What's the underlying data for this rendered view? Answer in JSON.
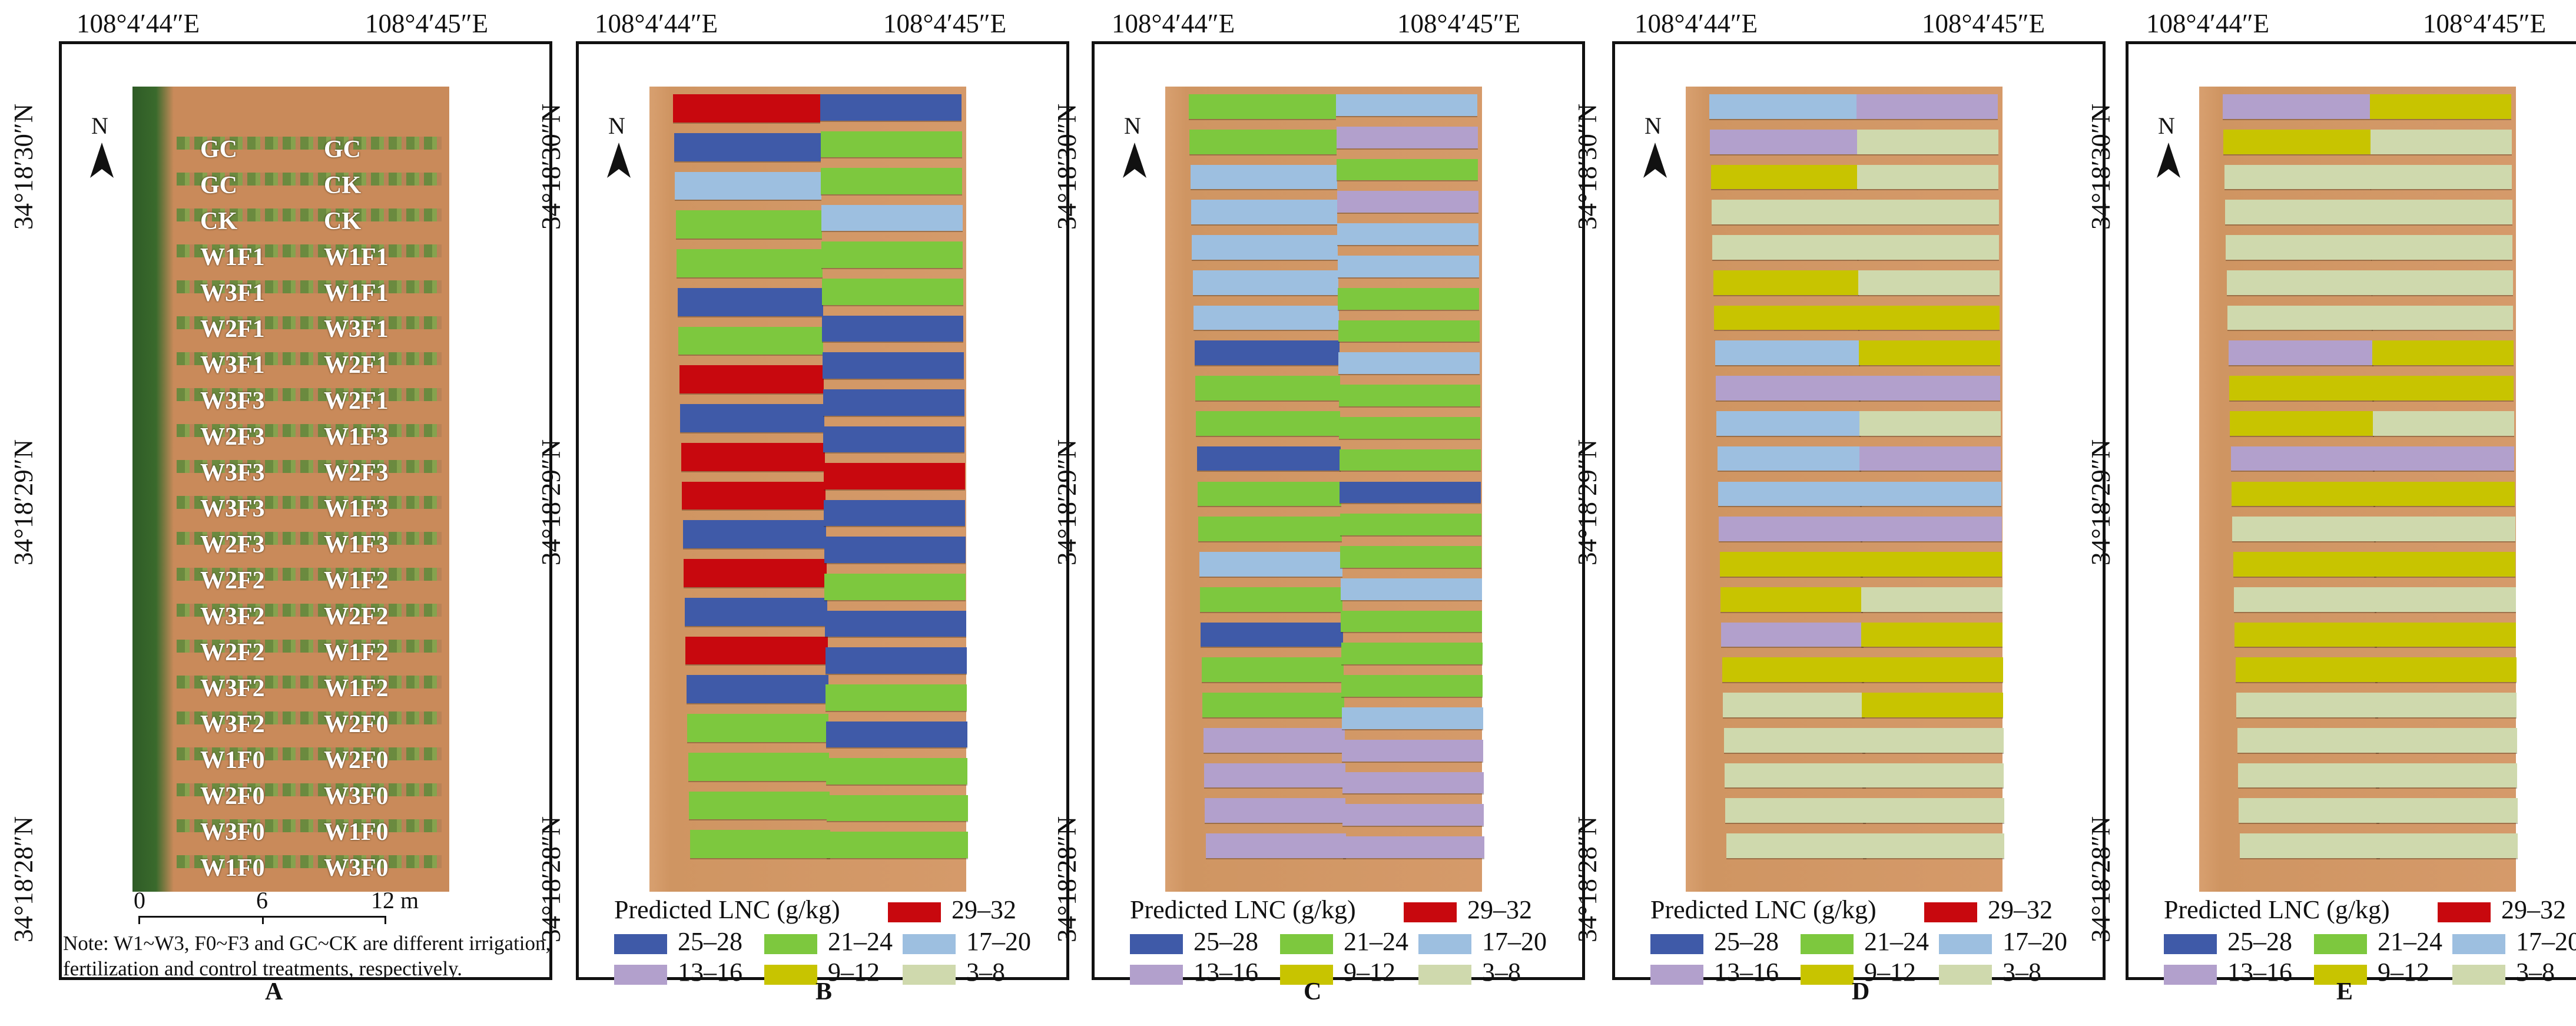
{
  "coords": {
    "lon_left": "108°4′44″E",
    "lon_right": "108°4′45″E",
    "lat_top": "34°18′30″N",
    "lat_mid": "34°18′29″N",
    "lat_bot": "34°18′28″N"
  },
  "north_label": "N",
  "panel_a": {
    "letter": "A",
    "treatments": [
      [
        "GC",
        "GC"
      ],
      [
        "GC",
        "CK"
      ],
      [
        "CK",
        "CK"
      ],
      [
        "W1F1",
        "W1F1"
      ],
      [
        "W3F1",
        "W1F1"
      ],
      [
        "W2F1",
        "W3F1"
      ],
      [
        "W3F1",
        "W2F1"
      ],
      [
        "W3F3",
        "W2F1"
      ],
      [
        "W2F3",
        "W1F3"
      ],
      [
        "W3F3",
        "W2F3"
      ],
      [
        "W3F3",
        "W1F3"
      ],
      [
        "W2F3",
        "W1F3"
      ],
      [
        "W2F2",
        "W1F2"
      ],
      [
        "W3F2",
        "W2F2"
      ],
      [
        "W2F2",
        "W1F2"
      ],
      [
        "W3F2",
        "W1F2"
      ],
      [
        "W3F2",
        "W2F0"
      ],
      [
        "W1F0",
        "W2F0"
      ],
      [
        "W2F0",
        "W3F0"
      ],
      [
        "W3F0",
        "W1F0"
      ],
      [
        "W1F0",
        "W3F0"
      ]
    ],
    "scale_ticks": [
      "0",
      "6",
      "12 m"
    ],
    "note": "Note: W1~W3, F0~F3 and GC~CK are different irrigation, fertilization and control treatments, respectively."
  },
  "legend": {
    "title": "Predicted LNC (g/kg)",
    "classes": [
      {
        "key": "c29",
        "label": "29–32",
        "color": "#c8080e"
      },
      {
        "key": "c25",
        "label": "25–28",
        "color": "#3f5aa8"
      },
      {
        "key": "c21",
        "label": "21–24",
        "color": "#7dc83e"
      },
      {
        "key": "c17",
        "label": "17–20",
        "color": "#9dbfe0"
      },
      {
        "key": "c13",
        "label": "13–16",
        "color": "#b2a0cc"
      },
      {
        "key": "c9",
        "label": "9–12",
        "color": "#c8c400"
      },
      {
        "key": "c3",
        "label": "3–8",
        "color": "#cfd9ad"
      }
    ]
  },
  "maps": [
    {
      "letter": "B",
      "left": [
        "c29",
        "c25",
        "c17",
        "c21",
        "c21",
        "c25",
        "c21",
        "c29",
        "c25",
        "c29",
        "c29",
        "c25",
        "c29",
        "c25",
        "c29",
        "c25",
        "c21",
        "c21",
        "c21",
        "c21"
      ],
      "right": [
        "c25",
        "c21",
        "c21",
        "c17",
        "c21",
        "c21",
        "c25",
        "c25",
        "c25",
        "c25",
        "c29",
        "c25",
        "c25",
        "c21",
        "c25",
        "c25",
        "c21",
        "c25",
        "c21",
        "c21",
        "c21"
      ]
    },
    {
      "letter": "C",
      "left": [
        "c21",
        "c21",
        "c17",
        "c17",
        "c17",
        "c17",
        "c17",
        "c25",
        "c21",
        "c21",
        "c25",
        "c21",
        "c21",
        "c17",
        "c21",
        "c25",
        "c21",
        "c21",
        "c13",
        "c13",
        "c13",
        "c13"
      ],
      "right": [
        "c17",
        "c13",
        "c21",
        "c13",
        "c17",
        "c17",
        "c21",
        "c21",
        "c17",
        "c21",
        "c21",
        "c21",
        "c25",
        "c21",
        "c21",
        "c17",
        "c21",
        "c21",
        "c21",
        "c17",
        "c13",
        "c13",
        "c13",
        "c13"
      ]
    },
    {
      "letter": "D",
      "left": [
        "c17",
        "c13",
        "c9",
        "c3",
        "c3",
        "c9",
        "c9",
        "c17",
        "c13",
        "c17",
        "c17",
        "c17",
        "c13",
        "c9",
        "c9",
        "c13",
        "c9",
        "c3",
        "c3",
        "c3",
        "c3",
        "c3"
      ],
      "right": [
        "c13",
        "c3",
        "c3",
        "c3",
        "c3",
        "c3",
        "c9",
        "c9",
        "c13",
        "c3",
        "c13",
        "c17",
        "c13",
        "c9",
        "c3",
        "c9",
        "c9",
        "c9",
        "c3",
        "c3",
        "c3",
        "c3"
      ]
    },
    {
      "letter": "E",
      "left": [
        "c13",
        "c9",
        "c3",
        "c3",
        "c3",
        "c3",
        "c3",
        "c13",
        "c9",
        "c9",
        "c13",
        "c9",
        "c3",
        "c9",
        "c3",
        "c9",
        "c9",
        "c3",
        "c3",
        "c3",
        "c3",
        "c3"
      ],
      "right": [
        "c9",
        "c3",
        "c3",
        "c3",
        "c3",
        "c3",
        "c3",
        "c9",
        "c9",
        "c3",
        "c13",
        "c9",
        "c3",
        "c9",
        "c3",
        "c9",
        "c9",
        "c3",
        "c3",
        "c3",
        "c3",
        "c3"
      ]
    }
  ]
}
